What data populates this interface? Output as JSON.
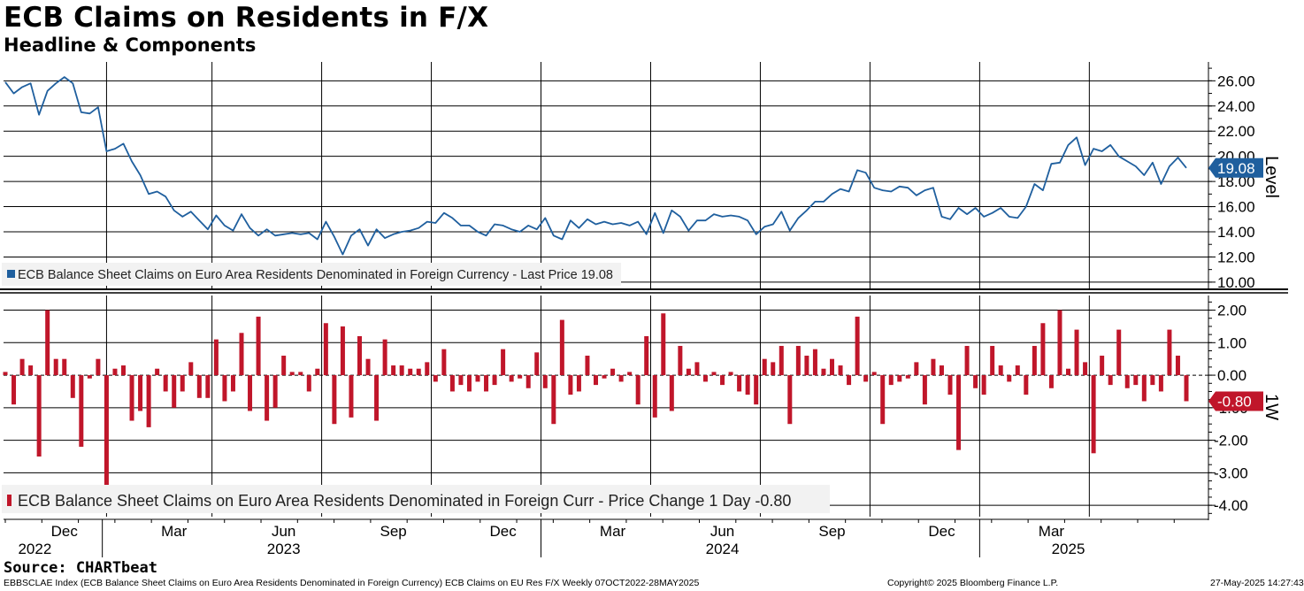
{
  "header": {
    "title": "ECB Claims on Residents in F/X",
    "subtitle": "Headline & Components"
  },
  "footer": {
    "source": "Source: CHARTbeat",
    "index_text": "EBBSCLAE Index (ECB Balance Sheet Claims on Euro Area Residents Denominated in Foreign Currency) ECB Claims on EU Res F/X  Weekly 07OCT2022-28MAY2025",
    "copyright": "Copyright© 2025 Bloomberg Finance L.P.",
    "timestamp": "27-May-2025 14:27:43"
  },
  "colors": {
    "line": "#1f5f9e",
    "bar": "#c0162a",
    "grid": "#000000"
  },
  "chart_data": [
    {
      "type": "line",
      "panel": "top",
      "axis_title": "Level",
      "ylim": [
        9.5,
        27.5
      ],
      "yticks": [
        "26.00",
        "24.00",
        "22.00",
        "20.00",
        "18.00",
        "16.00",
        "14.00",
        "12.00",
        "10.00"
      ],
      "ytick_values": [
        26,
        24,
        22,
        20,
        18,
        16,
        14,
        12,
        10
      ],
      "legend": "ECB Balance Sheet Claims on Euro Area Residents Denominated in Foreign Currency - Last Price 19.08",
      "last_value_label": "19.08",
      "last_value": 19.08,
      "series": [
        {
          "name": "ECB Balance Sheet Claims on Euro Area Residents Denominated in Foreign Currency",
          "values": [
            25.9,
            25.0,
            25.5,
            25.8,
            23.3,
            25.2,
            25.8,
            26.3,
            25.8,
            23.5,
            23.4,
            23.9,
            20.4,
            20.6,
            21.0,
            19.6,
            18.5,
            17.0,
            17.2,
            16.8,
            15.7,
            15.2,
            15.6,
            14.9,
            14.2,
            15.3,
            14.5,
            14.1,
            15.4,
            14.3,
            13.7,
            14.2,
            13.7,
            13.8,
            13.9,
            13.8,
            13.9,
            13.4,
            14.8,
            13.6,
            12.2,
            13.7,
            14.2,
            12.9,
            14.2,
            13.5,
            13.8,
            14.0,
            14.1,
            14.3,
            14.8,
            14.7,
            15.5,
            15.1,
            14.5,
            14.5,
            14.0,
            13.7,
            14.6,
            14.5,
            14.2,
            14.0,
            14.5,
            14.2,
            15.1,
            13.7,
            13.4,
            14.9,
            14.3,
            15.0,
            14.6,
            14.8,
            14.6,
            14.7,
            14.5,
            14.8,
            13.8,
            15.5,
            13.9,
            15.7,
            15.2,
            14.1,
            14.9,
            14.9,
            15.4,
            15.2,
            15.3,
            15.2,
            14.9,
            13.8,
            14.4,
            14.6,
            15.6,
            14.1,
            15.1,
            15.7,
            16.4,
            16.4,
            17.0,
            17.4,
            17.2,
            18.9,
            18.7,
            17.5,
            17.3,
            17.2,
            17.6,
            17.5,
            16.9,
            17.3,
            17.5,
            15.2,
            15.0,
            15.9,
            15.4,
            15.9,
            15.2,
            15.5,
            15.9,
            15.2,
            15.1,
            16.0,
            17.8,
            17.3,
            19.4,
            19.5,
            20.9,
            21.5,
            19.3,
            20.6,
            20.4,
            20.9,
            20.0,
            19.6,
            19.2,
            18.5,
            19.5,
            17.8,
            19.2,
            19.9,
            19.08
          ]
        }
      ]
    },
    {
      "type": "bar",
      "panel": "bottom",
      "axis_title": "1W",
      "ylim": [
        -4.35,
        2.45
      ],
      "yticks": [
        "2.00",
        "1.00",
        "0.00",
        "-1.00",
        "-2.00",
        "-3.00",
        "-4.00"
      ],
      "ytick_values": [
        2,
        1,
        0,
        -1,
        -2,
        -3,
        -4
      ],
      "legend": "ECB Balance Sheet Claims on Euro Area Residents Denominated in Foreign Curr - Price Change 1 Day -0.80",
      "last_value_label": "-0.80",
      "last_value": -0.8,
      "series": [
        {
          "name": "ECB Balance Sheet Claims on Euro Area Residents Denominated in Foreign Curr - Price Change 1 Day",
          "values": [
            0.1,
            -0.9,
            0.5,
            0.3,
            -2.5,
            2.0,
            0.5,
            0.5,
            -0.7,
            -2.2,
            -0.1,
            0.5,
            -3.5,
            0.2,
            0.3,
            -1.4,
            -1.1,
            -1.6,
            0.2,
            -0.5,
            -1.0,
            -0.5,
            0.4,
            -0.7,
            -0.7,
            1.1,
            -0.8,
            -0.5,
            1.3,
            -1.1,
            1.8,
            -1.4,
            -1.0,
            0.6,
            0.1,
            0.1,
            -0.5,
            0.2,
            1.6,
            -1.5,
            1.5,
            -1.3,
            1.2,
            0.5,
            -1.4,
            1.1,
            0.3,
            0.3,
            0.2,
            0.2,
            0.4,
            -0.2,
            0.8,
            -0.5,
            -0.3,
            -0.5,
            -0.2,
            -0.5,
            -0.3,
            0.8,
            -0.2,
            -0.1,
            -0.4,
            0.7,
            -0.4,
            -1.5,
            1.7,
            -0.6,
            -0.5,
            0.6,
            -0.3,
            -0.1,
            0.2,
            -0.2,
            0.1,
            -0.9,
            1.2,
            -1.3,
            1.9,
            -1.1,
            0.9,
            0.2,
            0.4,
            -0.2,
            0.1,
            -0.3,
            0.1,
            -0.5,
            -0.6,
            -0.9,
            0.5,
            0.4,
            0.9,
            -1.5,
            0.9,
            0.6,
            0.8,
            0.2,
            0.5,
            0.3,
            -0.3,
            1.8,
            -0.2,
            0.1,
            -1.5,
            -0.3,
            -0.2,
            -0.1,
            0.4,
            -0.9,
            0.5,
            0.3,
            -0.6,
            -2.3,
            0.9,
            -0.4,
            -0.6,
            0.9,
            0.3,
            -0.2,
            0.3,
            -0.6,
            0.9,
            1.6,
            -0.4,
            2.0,
            0.2,
            1.4,
            0.4,
            -2.4,
            0.6,
            -0.3,
            1.4,
            -0.4,
            -0.3,
            -0.8,
            -0.3,
            -0.5,
            1.4,
            0.6,
            -0.8
          ]
        }
      ]
    }
  ],
  "x_axis": {
    "month_labels": [
      "Dec",
      "Mar",
      "Jun",
      "Sep",
      "Dec",
      "Mar",
      "Jun",
      "Sep",
      "Dec",
      "Mar"
    ],
    "month_label_weeks": [
      7,
      20,
      33,
      46,
      59,
      72,
      85,
      98,
      111,
      124
    ],
    "year_labels": [
      "2022",
      "2023",
      "2024",
      "2025"
    ],
    "year_label_weeks": [
      3.5,
      33,
      85,
      126
    ],
    "year_boundary_weeks": [
      11.5,
      63.5,
      115.5
    ],
    "gridline_weeks": [
      12,
      24.5,
      37.5,
      50.5,
      63.5,
      76.5,
      89.5,
      102.5,
      115.5,
      128.5
    ]
  }
}
